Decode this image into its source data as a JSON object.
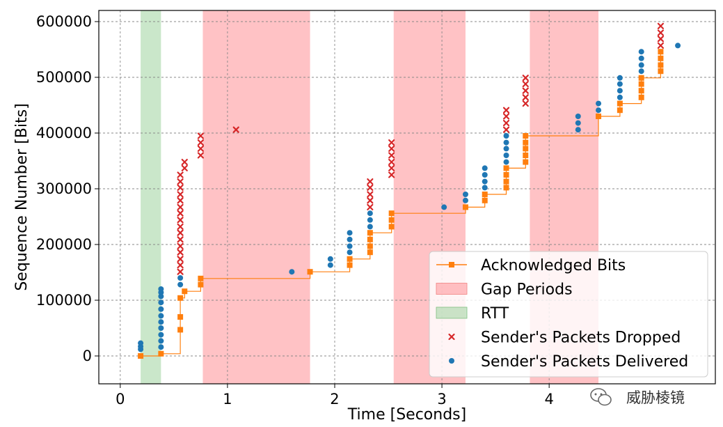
{
  "chart_data": {
    "type": "scatter",
    "xlabel": "Time [Seconds]",
    "ylabel": "Sequence Number [Bits]",
    "xlim": [
      -0.2,
      5.55
    ],
    "ylim": [
      -50000,
      620000
    ],
    "xticks": [
      0,
      1,
      2,
      3,
      4
    ],
    "yticks": [
      0,
      100000,
      200000,
      300000,
      400000,
      500000,
      600000
    ],
    "grid": true,
    "legend_position": "bottom-right",
    "colors": {
      "acked": "#ff7f0e",
      "gap": "#ff9a9e",
      "rtt": "#9fd39f",
      "dropped": "#d62728",
      "delivered": "#1f77b4"
    },
    "gap_periods": [
      [
        0.77,
        1.77
      ],
      [
        2.55,
        3.22
      ],
      [
        3.82,
        4.46
      ]
    ],
    "rtt_period": [
      0.19,
      0.38
    ],
    "legend": [
      {
        "key": "acked",
        "label": "Acknowledged Bits"
      },
      {
        "key": "gap",
        "label": "Gap Periods"
      },
      {
        "key": "rtt",
        "label": "RTT"
      },
      {
        "key": "dropped",
        "label": "Sender's Packets Dropped"
      },
      {
        "key": "delivered",
        "label": "Sender's Packets Delivered"
      }
    ],
    "series": [
      {
        "name": "Acknowledged Bits",
        "kind": "step",
        "points": [
          [
            0.19,
            0
          ],
          [
            0.38,
            4000
          ],
          [
            0.56,
            47000
          ],
          [
            0.56,
            70000
          ],
          [
            0.56,
            104000
          ],
          [
            0.6,
            116000
          ],
          [
            0.75,
            128000
          ],
          [
            0.75,
            139000
          ],
          [
            1.77,
            151000
          ],
          [
            2.14,
            163000
          ],
          [
            2.14,
            174000
          ],
          [
            2.33,
            186000
          ],
          [
            2.33,
            197000
          ],
          [
            2.33,
            209000
          ],
          [
            2.33,
            221000
          ],
          [
            2.53,
            232000
          ],
          [
            2.53,
            244000
          ],
          [
            2.53,
            256000
          ],
          [
            3.22,
            267000
          ],
          [
            3.4,
            279000
          ],
          [
            3.4,
            290000
          ],
          [
            3.6,
            302000
          ],
          [
            3.6,
            313000
          ],
          [
            3.6,
            325000
          ],
          [
            3.6,
            337000
          ],
          [
            3.78,
            348000
          ],
          [
            3.78,
            360000
          ],
          [
            3.78,
            372000
          ],
          [
            3.78,
            383000
          ],
          [
            3.78,
            395000
          ],
          [
            4.46,
            430000
          ],
          [
            4.66,
            441000
          ],
          [
            4.66,
            453000
          ],
          [
            4.86,
            464000
          ],
          [
            4.86,
            476000
          ],
          [
            4.86,
            488000
          ],
          [
            4.86,
            499000
          ],
          [
            5.04,
            511000
          ],
          [
            5.04,
            522000
          ],
          [
            5.04,
            534000
          ],
          [
            5.04,
            546000
          ]
        ]
      },
      {
        "name": "Sender's Packets Dropped",
        "kind": "scatter",
        "points": [
          [
            0.56,
            151000
          ],
          [
            0.56,
            163000
          ],
          [
            0.56,
            174000
          ],
          [
            0.56,
            186000
          ],
          [
            0.56,
            197000
          ],
          [
            0.56,
            209000
          ],
          [
            0.56,
            221000
          ],
          [
            0.56,
            232000
          ],
          [
            0.56,
            244000
          ],
          [
            0.56,
            256000
          ],
          [
            0.56,
            267000
          ],
          [
            0.56,
            279000
          ],
          [
            0.56,
            290000
          ],
          [
            0.56,
            302000
          ],
          [
            0.56,
            313000
          ],
          [
            0.56,
            325000
          ],
          [
            0.6,
            337000
          ],
          [
            0.6,
            348000
          ],
          [
            0.75,
            360000
          ],
          [
            0.75,
            372000
          ],
          [
            0.75,
            383000
          ],
          [
            0.75,
            395000
          ],
          [
            1.08,
            406000
          ],
          [
            2.33,
            267000
          ],
          [
            2.33,
            279000
          ],
          [
            2.33,
            290000
          ],
          [
            2.33,
            302000
          ],
          [
            2.33,
            313000
          ],
          [
            2.53,
            325000
          ],
          [
            2.53,
            337000
          ],
          [
            2.53,
            348000
          ],
          [
            2.53,
            360000
          ],
          [
            2.53,
            372000
          ],
          [
            2.53,
            383000
          ],
          [
            3.6,
            406000
          ],
          [
            3.6,
            418000
          ],
          [
            3.6,
            430000
          ],
          [
            3.6,
            441000
          ],
          [
            3.78,
            453000
          ],
          [
            3.78,
            464000
          ],
          [
            3.78,
            476000
          ],
          [
            3.78,
            488000
          ],
          [
            3.78,
            499000
          ],
          [
            5.04,
            557000
          ],
          [
            5.04,
            569000
          ],
          [
            5.04,
            580000
          ],
          [
            5.04,
            592000
          ]
        ]
      },
      {
        "name": "Sender's Packets Delivered",
        "kind": "scatter",
        "points": [
          [
            0.19,
            12000
          ],
          [
            0.19,
            17000
          ],
          [
            0.19,
            23000
          ],
          [
            0.38,
            16000
          ],
          [
            0.38,
            27000
          ],
          [
            0.38,
            38000
          ],
          [
            0.38,
            50000
          ],
          [
            0.38,
            61000
          ],
          [
            0.38,
            72000
          ],
          [
            0.38,
            84000
          ],
          [
            0.38,
            96000
          ],
          [
            0.38,
            107000
          ],
          [
            0.38,
            114000
          ],
          [
            0.38,
            120000
          ],
          [
            0.56,
            128000
          ],
          [
            0.56,
            140000
          ],
          [
            1.6,
            151000
          ],
          [
            1.96,
            163000
          ],
          [
            1.96,
            174000
          ],
          [
            2.14,
            186000
          ],
          [
            2.14,
            197000
          ],
          [
            2.14,
            209000
          ],
          [
            2.14,
            221000
          ],
          [
            2.33,
            232000
          ],
          [
            2.33,
            244000
          ],
          [
            2.33,
            256000
          ],
          [
            3.02,
            267000
          ],
          [
            3.22,
            279000
          ],
          [
            3.22,
            290000
          ],
          [
            3.4,
            302000
          ],
          [
            3.4,
            313000
          ],
          [
            3.4,
            325000
          ],
          [
            3.4,
            337000
          ],
          [
            3.6,
            348000
          ],
          [
            3.6,
            360000
          ],
          [
            3.6,
            372000
          ],
          [
            3.6,
            383000
          ],
          [
            3.6,
            395000
          ],
          [
            4.27,
            406000
          ],
          [
            4.27,
            418000
          ],
          [
            4.27,
            430000
          ],
          [
            4.46,
            441000
          ],
          [
            4.46,
            453000
          ],
          [
            4.66,
            464000
          ],
          [
            4.66,
            476000
          ],
          [
            4.66,
            488000
          ],
          [
            4.66,
            499000
          ],
          [
            4.86,
            511000
          ],
          [
            4.86,
            522000
          ],
          [
            4.86,
            534000
          ],
          [
            4.86,
            546000
          ],
          [
            5.2,
            557000
          ]
        ]
      }
    ]
  },
  "watermark": {
    "text": "威胁棱镜",
    "icon": "wechat-logo-icon"
  }
}
